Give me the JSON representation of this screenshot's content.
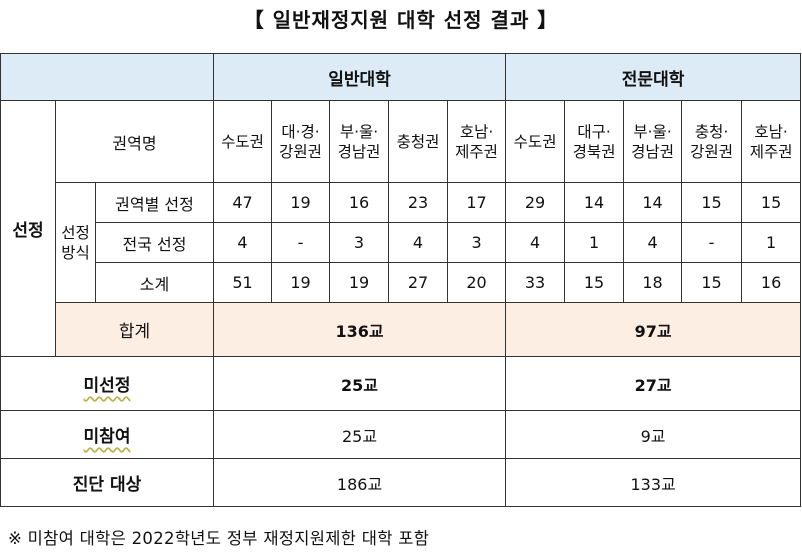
{
  "title": "【 일반재정지원 대학 선정 결과 】",
  "header": {
    "group_general": "일반대학",
    "group_junior": "전문대학"
  },
  "row_labels": {
    "region_name": "권역명",
    "selection": "선정",
    "method": "선정\n방식",
    "by_region": "권역별 선정",
    "national": "전국 선정",
    "subtotal": "소계",
    "total": "합계",
    "not_selected": "미선정",
    "not_participating": "미참여",
    "target": "진단 대상"
  },
  "regions": {
    "general": [
      "수도권",
      "대·경·\n강원권",
      "부·울·\n경남권",
      "충청권",
      "호남·\n제주권"
    ],
    "junior": [
      "수도권",
      "대구·\n경북권",
      "부·울·\n경남권",
      "충청·\n강원권",
      "호남·\n제주권"
    ]
  },
  "values": {
    "by_region": {
      "general": [
        "47",
        "19",
        "16",
        "23",
        "17"
      ],
      "junior": [
        "29",
        "14",
        "14",
        "15",
        "15"
      ]
    },
    "national": {
      "general": [
        "4",
        "-",
        "3",
        "4",
        "3"
      ],
      "junior": [
        "4",
        "1",
        "4",
        "-",
        "1"
      ]
    },
    "subtotal": {
      "general": [
        "51",
        "19",
        "19",
        "27",
        "20"
      ],
      "junior": [
        "33",
        "15",
        "18",
        "15",
        "16"
      ]
    }
  },
  "summary": {
    "total": {
      "general": "136교",
      "junior": "97교"
    },
    "not_selected": {
      "general": "25교",
      "junior": "27교"
    },
    "not_participating": {
      "general": "25교",
      "junior": "9교"
    },
    "target": {
      "general": "186교",
      "junior": "133교"
    }
  },
  "footnote": "※ 미참여 대학은 2022학년도 정부 재정지원제한 대학 포함",
  "colors": {
    "header_bg": "#dcebf6",
    "total_bg": "#fdeee3",
    "wavy_underline": "#b9b14a"
  }
}
